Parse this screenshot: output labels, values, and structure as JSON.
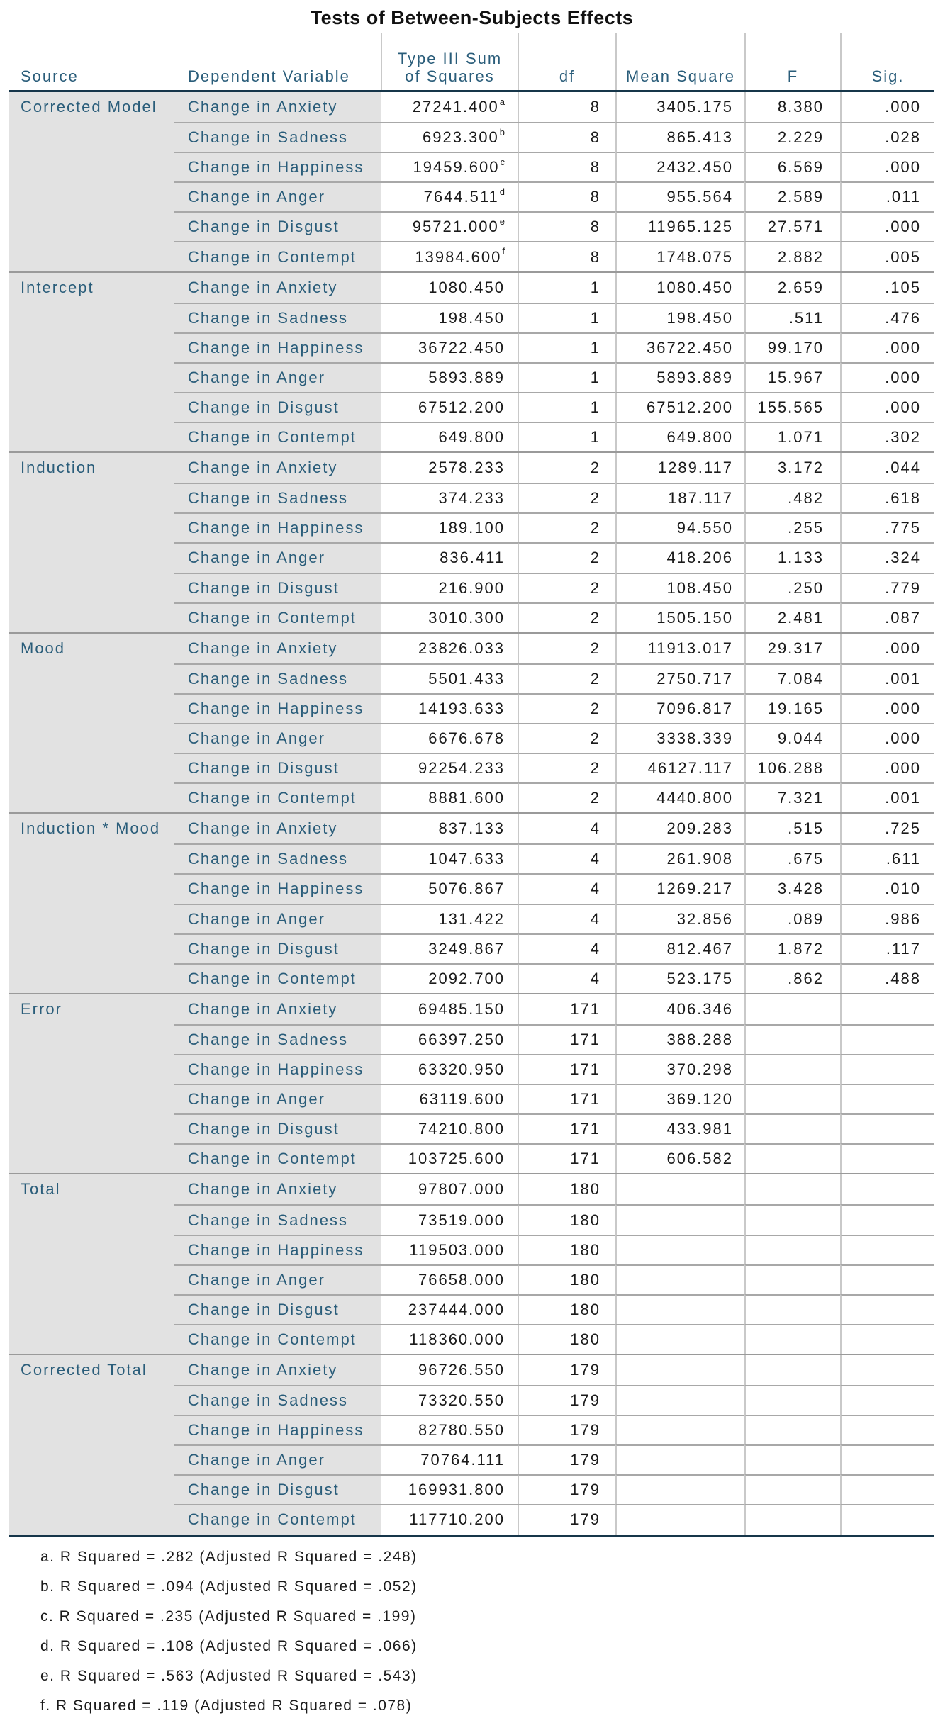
{
  "title": "Tests of Between-Subjects Effects",
  "colors": {
    "label_text": "#2a5d7a",
    "heavy_border": "#16364a",
    "row_label_background": "#e2e2e2",
    "group_separator": "#9a9a9a",
    "row_separator": "#a8a8a8",
    "column_divider": "#c9c9c9",
    "value_text": "#1a1a1a"
  },
  "table": {
    "columns": [
      {
        "key": "source",
        "label": "Source"
      },
      {
        "key": "dv",
        "label": "Dependent Variable"
      },
      {
        "key": "ss",
        "label": "Type III Sum of Squares",
        "label_lines": [
          "Type III Sum",
          "of Squares"
        ]
      },
      {
        "key": "df",
        "label": "df"
      },
      {
        "key": "ms",
        "label": "Mean Square"
      },
      {
        "key": "f",
        "label": "F"
      },
      {
        "key": "sig",
        "label": "Sig."
      }
    ],
    "groups": [
      {
        "source": "Corrected Model",
        "rows": [
          {
            "dv": "Change in Anxiety",
            "ss": "27241.400",
            "sup": "a",
            "df": "8",
            "ms": "3405.175",
            "f": "8.380",
            "sig": ".000"
          },
          {
            "dv": "Change in Sadness",
            "ss": "6923.300",
            "sup": "b",
            "df": "8",
            "ms": "865.413",
            "f": "2.229",
            "sig": ".028"
          },
          {
            "dv": "Change in Happiness",
            "ss": "19459.600",
            "sup": "c",
            "df": "8",
            "ms": "2432.450",
            "f": "6.569",
            "sig": ".000"
          },
          {
            "dv": "Change in Anger",
            "ss": "7644.511",
            "sup": "d",
            "df": "8",
            "ms": "955.564",
            "f": "2.589",
            "sig": ".011"
          },
          {
            "dv": "Change in Disgust",
            "ss": "95721.000",
            "sup": "e",
            "df": "8",
            "ms": "11965.125",
            "f": "27.571",
            "sig": ".000"
          },
          {
            "dv": "Change in Contempt",
            "ss": "13984.600",
            "sup": "f",
            "df": "8",
            "ms": "1748.075",
            "f": "2.882",
            "sig": ".005"
          }
        ]
      },
      {
        "source": "Intercept",
        "rows": [
          {
            "dv": "Change in Anxiety",
            "ss": "1080.450",
            "df": "1",
            "ms": "1080.450",
            "f": "2.659",
            "sig": ".105"
          },
          {
            "dv": "Change in Sadness",
            "ss": "198.450",
            "df": "1",
            "ms": "198.450",
            "f": ".511",
            "sig": ".476"
          },
          {
            "dv": "Change in Happiness",
            "ss": "36722.450",
            "df": "1",
            "ms": "36722.450",
            "f": "99.170",
            "sig": ".000"
          },
          {
            "dv": "Change in Anger",
            "ss": "5893.889",
            "df": "1",
            "ms": "5893.889",
            "f": "15.967",
            "sig": ".000"
          },
          {
            "dv": "Change in Disgust",
            "ss": "67512.200",
            "df": "1",
            "ms": "67512.200",
            "f": "155.565",
            "sig": ".000"
          },
          {
            "dv": "Change in Contempt",
            "ss": "649.800",
            "df": "1",
            "ms": "649.800",
            "f": "1.071",
            "sig": ".302"
          }
        ]
      },
      {
        "source": "Induction",
        "rows": [
          {
            "dv": "Change in Anxiety",
            "ss": "2578.233",
            "df": "2",
            "ms": "1289.117",
            "f": "3.172",
            "sig": ".044"
          },
          {
            "dv": "Change in Sadness",
            "ss": "374.233",
            "df": "2",
            "ms": "187.117",
            "f": ".482",
            "sig": ".618"
          },
          {
            "dv": "Change in Happiness",
            "ss": "189.100",
            "df": "2",
            "ms": "94.550",
            "f": ".255",
            "sig": ".775"
          },
          {
            "dv": "Change in Anger",
            "ss": "836.411",
            "df": "2",
            "ms": "418.206",
            "f": "1.133",
            "sig": ".324"
          },
          {
            "dv": "Change in Disgust",
            "ss": "216.900",
            "df": "2",
            "ms": "108.450",
            "f": ".250",
            "sig": ".779"
          },
          {
            "dv": "Change in Contempt",
            "ss": "3010.300",
            "df": "2",
            "ms": "1505.150",
            "f": "2.481",
            "sig": ".087"
          }
        ]
      },
      {
        "source": "Mood",
        "rows": [
          {
            "dv": "Change in Anxiety",
            "ss": "23826.033",
            "df": "2",
            "ms": "11913.017",
            "f": "29.317",
            "sig": ".000"
          },
          {
            "dv": "Change in Sadness",
            "ss": "5501.433",
            "df": "2",
            "ms": "2750.717",
            "f": "7.084",
            "sig": ".001"
          },
          {
            "dv": "Change in Happiness",
            "ss": "14193.633",
            "df": "2",
            "ms": "7096.817",
            "f": "19.165",
            "sig": ".000"
          },
          {
            "dv": "Change in Anger",
            "ss": "6676.678",
            "df": "2",
            "ms": "3338.339",
            "f": "9.044",
            "sig": ".000"
          },
          {
            "dv": "Change in Disgust",
            "ss": "92254.233",
            "df": "2",
            "ms": "46127.117",
            "f": "106.288",
            "sig": ".000"
          },
          {
            "dv": "Change in Contempt",
            "ss": "8881.600",
            "df": "2",
            "ms": "4440.800",
            "f": "7.321",
            "sig": ".001"
          }
        ]
      },
      {
        "source": "Induction * Mood",
        "rows": [
          {
            "dv": "Change in Anxiety",
            "ss": "837.133",
            "df": "4",
            "ms": "209.283",
            "f": ".515",
            "sig": ".725"
          },
          {
            "dv": "Change in Sadness",
            "ss": "1047.633",
            "df": "4",
            "ms": "261.908",
            "f": ".675",
            "sig": ".611"
          },
          {
            "dv": "Change in Happiness",
            "ss": "5076.867",
            "df": "4",
            "ms": "1269.217",
            "f": "3.428",
            "sig": ".010"
          },
          {
            "dv": "Change in Anger",
            "ss": "131.422",
            "df": "4",
            "ms": "32.856",
            "f": ".089",
            "sig": ".986"
          },
          {
            "dv": "Change in Disgust",
            "ss": "3249.867",
            "df": "4",
            "ms": "812.467",
            "f": "1.872",
            "sig": ".117"
          },
          {
            "dv": "Change in Contempt",
            "ss": "2092.700",
            "df": "4",
            "ms": "523.175",
            "f": ".862",
            "sig": ".488"
          }
        ]
      },
      {
        "source": "Error",
        "rows": [
          {
            "dv": "Change in Anxiety",
            "ss": "69485.150",
            "df": "171",
            "ms": "406.346",
            "f": "",
            "sig": ""
          },
          {
            "dv": "Change in Sadness",
            "ss": "66397.250",
            "df": "171",
            "ms": "388.288",
            "f": "",
            "sig": ""
          },
          {
            "dv": "Change in Happiness",
            "ss": "63320.950",
            "df": "171",
            "ms": "370.298",
            "f": "",
            "sig": ""
          },
          {
            "dv": "Change in Anger",
            "ss": "63119.600",
            "df": "171",
            "ms": "369.120",
            "f": "",
            "sig": ""
          },
          {
            "dv": "Change in Disgust",
            "ss": "74210.800",
            "df": "171",
            "ms": "433.981",
            "f": "",
            "sig": ""
          },
          {
            "dv": "Change in Contempt",
            "ss": "103725.600",
            "df": "171",
            "ms": "606.582",
            "f": "",
            "sig": ""
          }
        ]
      },
      {
        "source": "Total",
        "rows": [
          {
            "dv": "Change in Anxiety",
            "ss": "97807.000",
            "df": "180",
            "ms": "",
            "f": "",
            "sig": ""
          },
          {
            "dv": "Change in Sadness",
            "ss": "73519.000",
            "df": "180",
            "ms": "",
            "f": "",
            "sig": ""
          },
          {
            "dv": "Change in Happiness",
            "ss": "119503.000",
            "df": "180",
            "ms": "",
            "f": "",
            "sig": ""
          },
          {
            "dv": "Change in Anger",
            "ss": "76658.000",
            "df": "180",
            "ms": "",
            "f": "",
            "sig": ""
          },
          {
            "dv": "Change in Disgust",
            "ss": "237444.000",
            "df": "180",
            "ms": "",
            "f": "",
            "sig": ""
          },
          {
            "dv": "Change in Contempt",
            "ss": "118360.000",
            "df": "180",
            "ms": "",
            "f": "",
            "sig": ""
          }
        ]
      },
      {
        "source": "Corrected Total",
        "rows": [
          {
            "dv": "Change in Anxiety",
            "ss": "96726.550",
            "df": "179",
            "ms": "",
            "f": "",
            "sig": ""
          },
          {
            "dv": "Change in Sadness",
            "ss": "73320.550",
            "df": "179",
            "ms": "",
            "f": "",
            "sig": ""
          },
          {
            "dv": "Change in Happiness",
            "ss": "82780.550",
            "df": "179",
            "ms": "",
            "f": "",
            "sig": ""
          },
          {
            "dv": "Change in Anger",
            "ss": "70764.111",
            "df": "179",
            "ms": "",
            "f": "",
            "sig": ""
          },
          {
            "dv": "Change in Disgust",
            "ss": "169931.800",
            "df": "179",
            "ms": "",
            "f": "",
            "sig": ""
          },
          {
            "dv": "Change in Contempt",
            "ss": "117710.200",
            "df": "179",
            "ms": "",
            "f": "",
            "sig": ""
          }
        ]
      }
    ]
  },
  "footnotes": [
    "a. R Squared = .282 (Adjusted R Squared = .248)",
    "b. R Squared = .094 (Adjusted R Squared = .052)",
    "c. R Squared = .235 (Adjusted R Squared = .199)",
    "d. R Squared = .108 (Adjusted R Squared = .066)",
    "e. R Squared = .563 (Adjusted R Squared = .543)",
    "f. R Squared = .119 (Adjusted R Squared = .078)"
  ]
}
